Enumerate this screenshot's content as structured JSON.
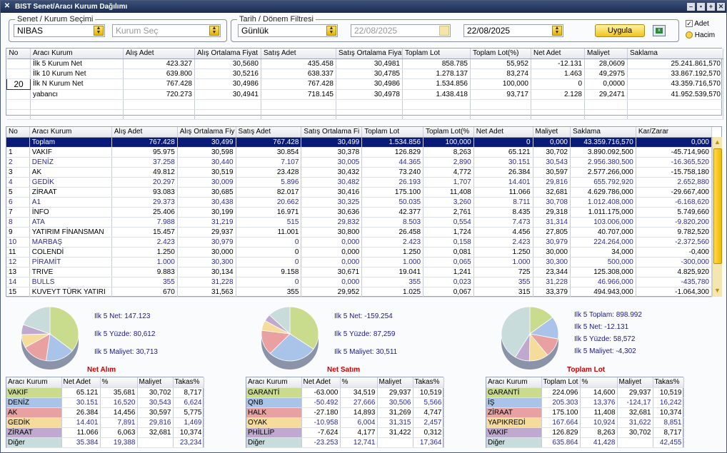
{
  "window": {
    "title": "BIST Senet/Aracı Kurum Dağılımı"
  },
  "filters": {
    "stock_group_title": "Senet / Kurum Seçimi",
    "stock": "NIBAS",
    "broker_placeholder": "Kurum Seç",
    "period_group_title": "Tarih / Dönem Filtresi",
    "period": "Günlük",
    "date_from": "22/08/2025",
    "date_to": "22/08/2025",
    "apply_label": "Uygula",
    "opt_adet": "Adet",
    "opt_hacim": "Hacim"
  },
  "summary": {
    "headers": [
      "No",
      "Aracı Kurum",
      "Alış Adet",
      "Alış Ortalama Fiyat",
      "Satış Adet",
      "Satış Ortalama Fiyat",
      "Toplam Lot",
      "Toplam Lot(%)",
      "Net Adet",
      "Maliyet",
      "Saklama"
    ],
    "rows": [
      [
        "",
        "İlk 5 Kurum Net",
        "423.327",
        "30,5680",
        "435.458",
        "30,4981",
        "858.785",
        "55,952",
        "-12.131",
        "28,0609",
        "25.241.861,570"
      ],
      [
        "",
        "İlk 10 Kurum Net",
        "639.800",
        "30,5216",
        "638.337",
        "30,4785",
        "1.278.137",
        "83,274",
        "1.463",
        "49,2975",
        "33.867.192,570"
      ],
      [
        "20",
        "İlk N Kurum Net",
        "767.428",
        "30,4986",
        "767.428",
        "30,4986",
        "1.534.856",
        "100,000",
        "0",
        "0,0000",
        "43.359.716,570"
      ],
      [
        "",
        "yabancı",
        "720.273",
        "30,4941",
        "718.145",
        "30,4978",
        "1.438.418",
        "93,717",
        "2.128",
        "29,2471",
        "41.952.539,570"
      ]
    ]
  },
  "main": {
    "headers": [
      "No",
      "Aracı Kurum",
      "Alış Adet",
      "Alış Ortalama Fiy",
      "Satış Adet",
      "Satış Ortalama Fi",
      "Toplam Lot",
      "Toplam Lot(%",
      "Net Adet",
      "Maliyet",
      "Saklama",
      "Kar/Zarar"
    ],
    "total": [
      "",
      "Toplam",
      "767.428",
      "30,499",
      "767.428",
      "30,499",
      "1.534.856",
      "100,000",
      "0",
      "0,000",
      "43.359.716,570",
      "0,000"
    ],
    "rows": [
      [
        "1",
        "VAKIF",
        "95.975",
        "30,598",
        "30.854",
        "30,378",
        "126.829",
        "8,263",
        "65.121",
        "30,702",
        "3.890.092,500",
        "-45.714,960"
      ],
      [
        "2",
        "DENİZ",
        "37.258",
        "30,440",
        "7.107",
        "30,005",
        "44.365",
        "2,890",
        "30.151",
        "30,543",
        "2.956.380,500",
        "-16.365,520"
      ],
      [
        "3",
        "AK",
        "49.812",
        "30,519",
        "23.428",
        "30,432",
        "73.240",
        "4,772",
        "26.384",
        "30,597",
        "2.577.266,000",
        "-15.758,180"
      ],
      [
        "4",
        "GEDİK",
        "20.297",
        "30,009",
        "5.896",
        "30,482",
        "26.193",
        "1,707",
        "14.401",
        "29,816",
        "655.792,920",
        "2.652,880"
      ],
      [
        "5",
        "ZİRAAT",
        "93.083",
        "30,685",
        "82.017",
        "30,416",
        "175.100",
        "11,408",
        "11.066",
        "32,681",
        "4.629.786,000",
        "-29.667,400"
      ],
      [
        "6",
        "A1",
        "29.373",
        "30,438",
        "20.662",
        "30,325",
        "50.035",
        "3,260",
        "8.711",
        "30,708",
        "1.012.408,000",
        "-6.168,620"
      ],
      [
        "7",
        "İNFO",
        "25.406",
        "30,199",
        "16.971",
        "30,636",
        "42.377",
        "2,761",
        "8.435",
        "29,318",
        "1.011.175,000",
        "5.749,660"
      ],
      [
        "8",
        "ATA",
        "7.988",
        "31,219",
        "515",
        "29,832",
        "8.503",
        "0,554",
        "7.473",
        "31,314",
        "103.006,000",
        "-9.820,200"
      ],
      [
        "9",
        "YATIRIM FİNANSMAN",
        "15.457",
        "29,937",
        "11.001",
        "30,800",
        "26.458",
        "1,724",
        "4.456",
        "27,805",
        "40.707,000",
        "9.782,520"
      ],
      [
        "10",
        "MARBAŞ",
        "2.423",
        "30,979",
        "0",
        "0,000",
        "2.423",
        "0,158",
        "2.423",
        "30,979",
        "224.264,000",
        "-2.372,560"
      ],
      [
        "11",
        "COLENDİ",
        "1.250",
        "30,000",
        "0",
        "0,000",
        "1.250",
        "0,081",
        "1.250",
        "30,000",
        "34,000",
        "-0,400"
      ],
      [
        "12",
        "PİRAMİT",
        "1.000",
        "30,300",
        "0",
        "0,000",
        "1.000",
        "0,065",
        "1.000",
        "30,300",
        "500,000",
        "-300,000"
      ],
      [
        "13",
        "TRIVE",
        "9.883",
        "30,134",
        "9.158",
        "30,671",
        "19.041",
        "1,241",
        "725",
        "23,344",
        "125.308,000",
        "4.825,920"
      ],
      [
        "14",
        "BULLS",
        "355",
        "31,228",
        "0",
        "0,000",
        "355",
        "0,023",
        "355",
        "31,228",
        "46.966,000",
        "-435,780"
      ],
      [
        "15",
        "KUVEYT TÜRK YATIRI",
        "670",
        "31,563",
        "355",
        "29,952",
        "1.025",
        "0,067",
        "315",
        "33,379",
        "494.943,000",
        "-1.064,300"
      ]
    ]
  },
  "panels": [
    {
      "title": "Net Alım",
      "stats": [
        "Ilk 5 Net: 147.123",
        "Ilk 5 Yüzde: 80,612",
        "Ilk 5 Maliyet: 30,713"
      ],
      "headers": [
        "Aracı Kurum",
        "Net Adet",
        "%",
        "Maliyet",
        "Takas%"
      ],
      "rows": [
        [
          "VAKIF",
          "65.121",
          "35,681",
          "30,702",
          "8,717"
        ],
        [
          "DENİZ",
          "30.151",
          "16,520",
          "30,543",
          "6,624"
        ],
        [
          "AK",
          "26.384",
          "14,456",
          "30,597",
          "5,775"
        ],
        [
          "GEDİK",
          "14.401",
          "7,891",
          "29,816",
          "1,469"
        ],
        [
          "ZİRAAT",
          "11.066",
          "6,063",
          "32,681",
          "10,374"
        ],
        [
          "Diğer",
          "35.384",
          "19,388",
          "",
          "23,234"
        ]
      ],
      "slices": [
        35.681,
        16.52,
        14.456,
        7.891,
        6.063,
        19.388
      ]
    },
    {
      "title": "Net Satım",
      "stats": [
        "Ilk 5 Net: -159.254",
        "Ilk 5 Yüzde: 87,259",
        "Ilk 5 Maliyet: 30,511"
      ],
      "headers": [
        "Aracı Kurum",
        "Net Adet",
        "%",
        "Maliyet",
        "Takas%"
      ],
      "rows": [
        [
          "GARANTİ",
          "-63.000",
          "34,519",
          "29,937",
          "10,519"
        ],
        [
          "QNB",
          "-50.492",
          "27,666",
          "30,506",
          "5,566"
        ],
        [
          "HALK",
          "-27.180",
          "14,893",
          "31,269",
          "4,747"
        ],
        [
          "OYAK",
          "-10.958",
          "6,004",
          "31,315",
          "2,457"
        ],
        [
          "PHİLLİP",
          "-7.624",
          "4,177",
          "31,422",
          "0,312"
        ],
        [
          "Diğer",
          "-23.253",
          "12,741",
          "",
          "17,364"
        ]
      ],
      "slices": [
        34.519,
        27.666,
        14.893,
        6.004,
        4.177,
        12.741
      ]
    },
    {
      "title": "Toplam Lot",
      "stats": [
        "Ilk 5 Toplam: 898.992",
        "Ilk 5 Net: -12.131",
        "Ilk 5 Yüzde: 58,572",
        "Ilk 5 Maliyet: -4,302"
      ],
      "headers": [
        "Aracı Kurum",
        "Toplam Lot",
        "%",
        "Maliyet",
        "Takas%"
      ],
      "rows": [
        [
          "GARANTİ",
          "224.096",
          "14,600",
          "29,937",
          "10,519"
        ],
        [
          "İŞ",
          "205.303",
          "13,376",
          "-124,17",
          "16,242"
        ],
        [
          "ZİRAAT",
          "175.100",
          "11,408",
          "32,681",
          "10,374"
        ],
        [
          "YAPIKREDİ",
          "167.664",
          "10,924",
          "31,622",
          "8,851"
        ],
        [
          "VAKIF",
          "126.829",
          "8,263",
          "30,702",
          "8,717"
        ],
        [
          "Diğer",
          "635.864",
          "41,428",
          "",
          "42,455"
        ]
      ],
      "slices": [
        14.6,
        13.376,
        11.408,
        10.924,
        8.263,
        41.428
      ]
    }
  ],
  "colors": [
    "#c9dc8e",
    "#a9c4e8",
    "#e8a0a0",
    "#f6dc9a",
    "#c0a9cf",
    "#c8dcdc"
  ]
}
